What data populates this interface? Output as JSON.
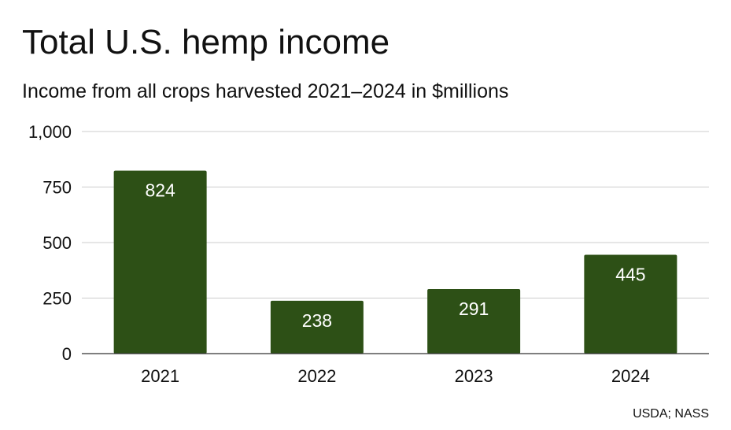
{
  "title": "Total U.S. hemp income",
  "subtitle": "Income from all crops harvested 2021–2024 in $millions",
  "source": "USDA; NASS",
  "colors": {
    "bar": "#2d5016",
    "gridline": "#cccccc",
    "axis": "#333333",
    "label_inside": "#ffffff"
  },
  "chart_data": {
    "type": "bar",
    "title": "Total U.S. hemp income",
    "subtitle": "Income from all crops harvested 2021–2024 in $millions",
    "categories": [
      "2021",
      "2022",
      "2023",
      "2024"
    ],
    "values": [
      824,
      238,
      291,
      445
    ],
    "data_labels": [
      "824",
      "238",
      "291",
      "445"
    ],
    "ylim": [
      0,
      1000
    ],
    "yticks": [
      0,
      250,
      500,
      750,
      1000
    ],
    "ytick_labels": [
      "0",
      "250",
      "500",
      "750",
      "1,000"
    ],
    "xlabel": "",
    "ylabel": "",
    "grid": true,
    "legend": "none"
  }
}
